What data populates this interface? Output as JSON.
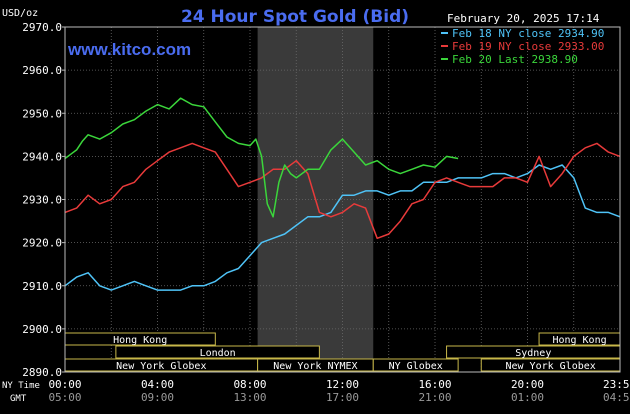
{
  "brand": "www.kitco.com",
  "chart_data": {
    "type": "line",
    "title": "24 Hour Spot Gold (Bid)",
    "timestamp": "February 20, 2025 17:14",
    "ylabel": "USD/oz",
    "ylim": [
      2890,
      2970
    ],
    "y_ticks": [
      "2970.0",
      "2960.0",
      "2950.0",
      "2940.0",
      "2930.0",
      "2920.0",
      "2910.0",
      "2900.0",
      "2890.0"
    ],
    "x_ticks": [
      {
        "hour": 0,
        "ny": "00:00",
        "gmt": "05:00"
      },
      {
        "hour": 4,
        "ny": "04:00",
        "gmt": "09:00"
      },
      {
        "hour": 8,
        "ny": "08:00",
        "gmt": "13:00"
      },
      {
        "hour": 12,
        "ny": "12:00",
        "gmt": "17:00"
      },
      {
        "hour": 16,
        "ny": "16:00",
        "gmt": "21:00"
      },
      {
        "hour": 20,
        "ny": "20:00",
        "gmt": "01:00"
      },
      {
        "hour": 23.98,
        "ny": "23:59",
        "gmt": "04:59"
      }
    ],
    "x_row_labels": {
      "ny": "NY Time",
      "gmt": "GMT"
    },
    "grid": true,
    "legend_position": "top-right",
    "highlight_hours": [
      8.33,
      13.33
    ],
    "series": [
      {
        "name": "Feb 18 NY close 2934.90",
        "color": "#4fc3f7",
        "hours": [
          0,
          0.5,
          1,
          1.5,
          2,
          2.5,
          3,
          3.5,
          4,
          4.5,
          5,
          5.5,
          6,
          6.5,
          7,
          7.5,
          8,
          8.5,
          9,
          9.5,
          10,
          10.5,
          11,
          11.5,
          12,
          12.5,
          13,
          13.5,
          14,
          14.5,
          15,
          15.5,
          16,
          16.5,
          17,
          17.5,
          18,
          18.5,
          19,
          19.5,
          20,
          20.5,
          21,
          21.5,
          22,
          22.5,
          23,
          23.5,
          24
        ],
        "values": [
          2910,
          2912,
          2913,
          2910,
          2909,
          2910,
          2911,
          2910,
          2909,
          2909,
          2909,
          2910,
          2910,
          2911,
          2913,
          2914,
          2917,
          2920,
          2921,
          2922,
          2924,
          2926,
          2926,
          2927,
          2931,
          2931,
          2932,
          2932,
          2931,
          2932,
          2932,
          2934,
          2934,
          2934,
          2935,
          2935,
          2935,
          2936,
          2936,
          2935,
          2936,
          2938,
          2937,
          2938,
          2935,
          2928,
          2927,
          2927,
          2926
        ]
      },
      {
        "name": "Feb 19 NY close 2933.00",
        "color": "#e83a3a",
        "hours": [
          0,
          0.5,
          1,
          1.5,
          2,
          2.5,
          3,
          3.5,
          4,
          4.5,
          5,
          5.5,
          6,
          6.5,
          7,
          7.5,
          8,
          8.5,
          9,
          9.5,
          10,
          10.5,
          11,
          11.5,
          12,
          12.5,
          13,
          13.5,
          14,
          14.5,
          15,
          15.5,
          16,
          16.5,
          17,
          17.5,
          18,
          18.5,
          19,
          19.5,
          20,
          20.5,
          21,
          21.5,
          22,
          22.5,
          23,
          23.5,
          24
        ],
        "values": [
          2927,
          2928,
          2931,
          2929,
          2930,
          2933,
          2934,
          2937,
          2939,
          2941,
          2942,
          2943,
          2942,
          2941,
          2937,
          2933,
          2934,
          2935,
          2937,
          2937,
          2939,
          2936,
          2927,
          2926,
          2927,
          2929,
          2928,
          2921,
          2922,
          2925,
          2929,
          2930,
          2934,
          2935,
          2934,
          2933,
          2933,
          2933,
          2935,
          2935,
          2934,
          2940,
          2933,
          2936,
          2940,
          2942,
          2943,
          2941,
          2940
        ]
      },
      {
        "name": "Feb 20 Last 2938.90",
        "color": "#3bd63b",
        "hours": [
          0,
          0.25,
          0.5,
          0.75,
          1,
          1.5,
          2,
          2.5,
          3,
          3.5,
          4,
          4.5,
          5,
          5.5,
          6,
          6.5,
          7,
          7.5,
          8,
          8.25,
          8.5,
          8.75,
          9,
          9.25,
          9.5,
          9.75,
          10,
          10.5,
          11,
          11.5,
          12,
          12.5,
          13,
          13.5,
          14,
          14.5,
          15,
          15.5,
          16,
          16.5,
          17
        ],
        "values": [
          2939.5,
          2940.5,
          2941.5,
          2943.5,
          2945.0,
          2944.0,
          2945.5,
          2947.5,
          2948.5,
          2950.5,
          2952.0,
          2951.0,
          2953.5,
          2952.0,
          2951.5,
          2948.0,
          2944.5,
          2943.0,
          2942.5,
          2944.0,
          2940.0,
          2929.0,
          2926.0,
          2934.0,
          2938.0,
          2936.0,
          2935.0,
          2937.0,
          2937.0,
          2941.5,
          2944.0,
          2941.0,
          2938.0,
          2939.0,
          2937.0,
          2936.0,
          2937.0,
          2938.0,
          2937.5,
          2940.0,
          2939.5
        ]
      }
    ],
    "market_sessions": [
      {
        "label": "Hong Kong",
        "row": 0,
        "start": 0,
        "end": 6.5
      },
      {
        "label": "Hong Kong",
        "row": 0,
        "start": 20.5,
        "end": 24
      },
      {
        "label": "London",
        "row": 1,
        "start": 2.2,
        "end": 11
      },
      {
        "label": "Sydney",
        "row": 1,
        "start": 16.5,
        "end": 24
      },
      {
        "label": "New York Globex",
        "row": 2,
        "start": 0,
        "end": 8.33
      },
      {
        "label": "New York NYMEX",
        "row": 2,
        "start": 8.33,
        "end": 13.33
      },
      {
        "label": "NY Globex",
        "row": 2,
        "start": 13.33,
        "end": 17
      },
      {
        "label": "New York Globex",
        "row": 2,
        "start": 18,
        "end": 24
      }
    ]
  }
}
